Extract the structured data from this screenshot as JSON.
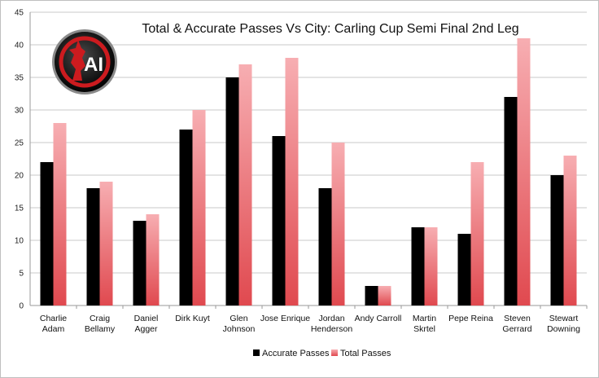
{
  "chart_data": {
    "type": "bar",
    "title": "Total & Accurate Passes Vs City: Carling Cup Semi Final 2nd Leg",
    "categories": [
      [
        "Charlie",
        "Adam"
      ],
      [
        "Craig",
        "Bellamy"
      ],
      [
        "Daniel",
        "Agger"
      ],
      [
        "Dirk Kuyt"
      ],
      [
        "Glen",
        "Johnson"
      ],
      [
        "Jose Enrique"
      ],
      [
        "Jordan",
        "Henderson"
      ],
      [
        "Andy Carroll"
      ],
      [
        "Martin",
        "Skrtel"
      ],
      [
        "Pepe Reina"
      ],
      [
        "Steven",
        "Gerrard"
      ],
      [
        "Stewart",
        "Downing"
      ]
    ],
    "series": [
      {
        "name": "Accurate Passes",
        "values": [
          22,
          18,
          13,
          27,
          35,
          26,
          18,
          3,
          12,
          11,
          32,
          20
        ],
        "color": "#000000"
      },
      {
        "name": "Total Passes",
        "values": [
          28,
          19,
          14,
          30,
          37,
          38,
          25,
          3,
          12,
          22,
          41,
          23
        ],
        "color_top": "#f7aeb2",
        "color_bottom": "#e0494f"
      }
    ],
    "ylim": [
      0,
      45
    ],
    "yticks": [
      "0",
      "5",
      "10",
      "15",
      "20",
      "25",
      "30",
      "35",
      "40",
      "45"
    ],
    "grid": true,
    "legend": "bottom"
  },
  "logo": {
    "text": "AI",
    "ring_color": "#cc1b1f"
  }
}
